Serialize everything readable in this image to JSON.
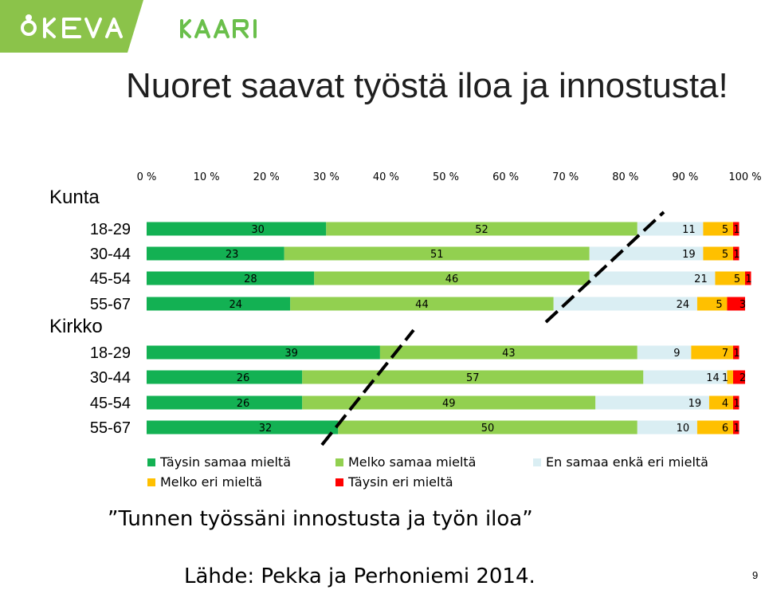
{
  "header": {
    "keva_logo_text": "KEVA",
    "kaari_logo_text": "KAARI",
    "band_color": "#8bc34a",
    "logo_color": "#6abf4b"
  },
  "title": "Nuoret saavat työstä iloa ja innostusta!",
  "question": "”Tunnen työssäni innostusta ja työn iloa”",
  "source": "Lähde: Pekka ja Perhoniemi 2014.",
  "page_number": "9",
  "legend": [
    {
      "label": "Täysin samaa mieltä",
      "color": "#13b153"
    },
    {
      "label": "Melko samaa mieltä",
      "color": "#92d050"
    },
    {
      "label": "En samaa enkä eri mieltä",
      "color": "#daeef3"
    },
    {
      "label": "Melko eri mieltä",
      "color": "#ffc000"
    },
    {
      "label": "Täysin eri mieltä",
      "color": "#ff0000"
    }
  ],
  "chart_data": {
    "type": "bar",
    "orientation": "horizontal",
    "stacked": "percent",
    "x_ticks": [
      "0 %",
      "10 %",
      "20 %",
      "30 %",
      "40 %",
      "50 %",
      "60 %",
      "70 %",
      "80 %",
      "90 %",
      "100 %"
    ],
    "xlim": [
      0,
      100
    ],
    "groups": [
      {
        "name": "Kunta",
        "categories": [
          "18-29",
          "30-44",
          "45-54",
          "55-67"
        ]
      },
      {
        "name": "Kirkko",
        "categories": [
          "18-29",
          "30-44",
          "45-54",
          "55-67"
        ]
      }
    ],
    "series": [
      {
        "name": "Täysin samaa mieltä",
        "color": "#13b153",
        "values": [
          30,
          23,
          28,
          24,
          39,
          26,
          26,
          32
        ]
      },
      {
        "name": "Melko samaa mieltä",
        "color": "#92d050",
        "values": [
          52,
          51,
          46,
          44,
          43,
          57,
          49,
          50
        ]
      },
      {
        "name": "En samaa enkä eri mieltä",
        "color": "#daeef3",
        "values": [
          11,
          19,
          21,
          24,
          9,
          14,
          19,
          10
        ]
      },
      {
        "name": "Melko eri mieltä",
        "color": "#ffc000",
        "values": [
          5,
          5,
          5,
          5,
          7,
          1,
          4,
          6
        ]
      },
      {
        "name": "Täysin eri mieltä",
        "color": "#ff0000",
        "values": [
          1,
          1,
          1,
          3,
          1,
          2,
          1,
          1
        ]
      }
    ]
  }
}
